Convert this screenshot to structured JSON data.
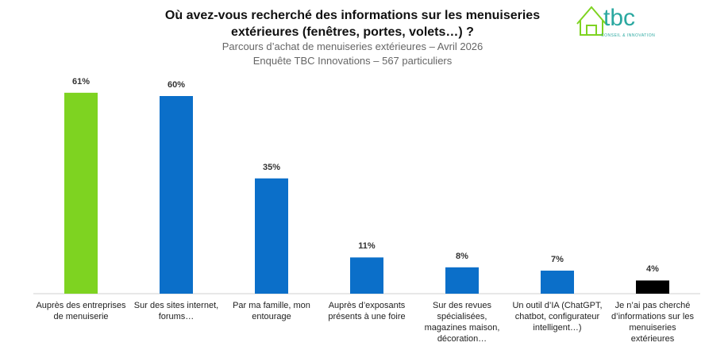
{
  "chart_data": {
    "type": "bar",
    "title": "Où avez-vous recherché des informations sur les menuiseries extérieures (fenêtres, portes, volets…) ?",
    "subtitle": [
      "Parcours d’achat de menuiseries extérieures – Avril 2026",
      "Enquête TBC Innovations – 567 particuliers"
    ],
    "logo": {
      "name": "tbc",
      "tagline": "CONSEIL & INNOVATION"
    },
    "categories": [
      "Auprès des entreprises de menuiserie",
      "Sur des sites internet, forums…",
      "Par ma famille, mon entourage",
      "Auprès d’exposants présents à une foire",
      "Sur des revues spécialisées, magazines maison, décoration…",
      "Un outil d’IA (ChatGPT, chatbot, configurateur intelligent…)",
      "Je n’ai pas cherché d’informations sur les menuiseries extérieures"
    ],
    "values": [
      61,
      60,
      35,
      11,
      8,
      7,
      4
    ],
    "value_labels": [
      "61%",
      "60%",
      "35%",
      "11%",
      "8%",
      "7%",
      "4%"
    ],
    "colors": [
      "#7ed321",
      "#0b6fc9",
      "#0b6fc9",
      "#0b6fc9",
      "#0b6fc9",
      "#0b6fc9",
      "#000000"
    ]
  }
}
